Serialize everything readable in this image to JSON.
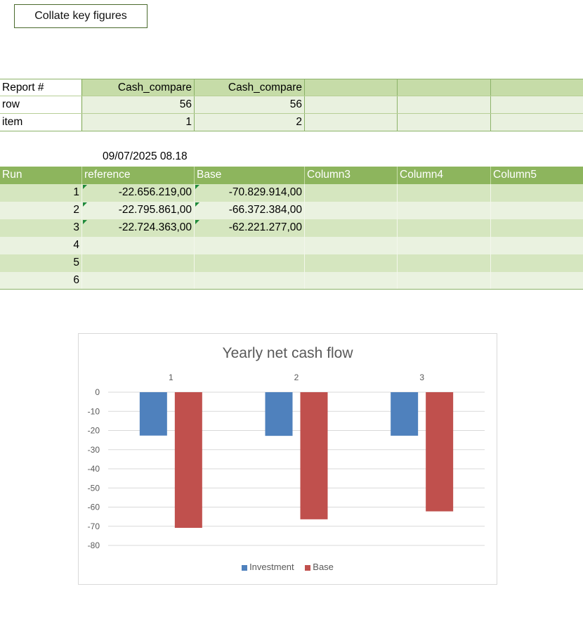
{
  "toolbar": {
    "collate_label": "Collate key figures"
  },
  "summary_table": {
    "rows": [
      {
        "label": "Report #",
        "values": [
          "Cash_compare",
          "Cash_compare",
          "",
          "",
          ""
        ]
      },
      {
        "label": "row",
        "values": [
          "56",
          "56",
          "",
          "",
          ""
        ]
      },
      {
        "label": "item",
        "values": [
          "1",
          "2",
          "",
          "",
          ""
        ]
      }
    ]
  },
  "timestamp": "09/07/2025 08.18",
  "data_table": {
    "headers": [
      "Run",
      "reference",
      "Base",
      "Column3",
      "Column4",
      "Column5"
    ],
    "rows": [
      {
        "run": "1",
        "reference": "-22.656.219,00",
        "base": "-70.829.914,00",
        "c3": "",
        "c4": "",
        "c5": ""
      },
      {
        "run": "2",
        "reference": "-22.795.861,00",
        "base": "-66.372.384,00",
        "c3": "",
        "c4": "",
        "c5": ""
      },
      {
        "run": "3",
        "reference": "-22.724.363,00",
        "base": "-62.221.277,00",
        "c3": "",
        "c4": "",
        "c5": ""
      },
      {
        "run": "4",
        "reference": "",
        "base": "",
        "c3": "",
        "c4": "",
        "c5": ""
      },
      {
        "run": "5",
        "reference": "",
        "base": "",
        "c3": "",
        "c4": "",
        "c5": ""
      },
      {
        "run": "6",
        "reference": "",
        "base": "",
        "c3": "",
        "c4": "",
        "c5": ""
      }
    ]
  },
  "chart_data": {
    "type": "bar",
    "title": "Yearly net cash flow",
    "categories": [
      "1",
      "2",
      "3"
    ],
    "series": [
      {
        "name": "Investment",
        "color": "#4f81bd",
        "values": [
          -22.66,
          -22.8,
          -22.72
        ]
      },
      {
        "name": "Base",
        "color": "#c0504d",
        "values": [
          -70.83,
          -66.37,
          -62.22
        ]
      }
    ],
    "ylim": [
      -80,
      0
    ],
    "yticks": [
      "0",
      "-10",
      "-20",
      "-30",
      "-40",
      "-50",
      "-60",
      "-70",
      "-80"
    ],
    "xlabel": "",
    "ylabel": "",
    "legend": "bottom",
    "grid": true
  }
}
